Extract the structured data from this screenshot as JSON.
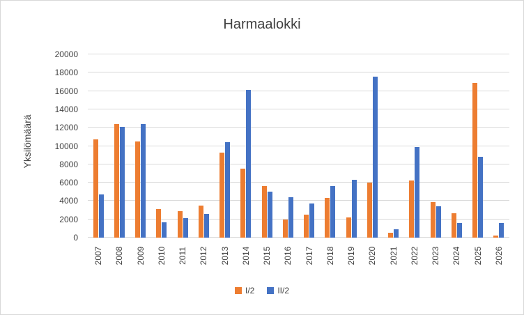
{
  "chart_data": {
    "type": "bar",
    "title": "Harmaalokki",
    "xlabel": "",
    "ylabel": "Yksilömäärä",
    "ylim": [
      0,
      20000
    ],
    "ytick_step": 2000,
    "grid": true,
    "legend_position": "bottom",
    "categories": [
      "2007",
      "2008",
      "2009",
      "2010",
      "2011",
      "2012",
      "2013",
      "2014",
      "2015",
      "2016",
      "2017",
      "2018",
      "2019",
      "2020",
      "2021",
      "2022",
      "2023",
      "2024",
      "2025",
      "2026"
    ],
    "series": [
      {
        "name": "I/2",
        "color": "#ED7D31",
        "values": [
          10700,
          12400,
          10500,
          3100,
          2900,
          3500,
          9300,
          7500,
          5600,
          2000,
          2500,
          4300,
          2200,
          6000,
          550,
          6200,
          3900,
          2700,
          16900,
          250
        ]
      },
      {
        "name": "II/2",
        "color": "#4472C4",
        "values": [
          4700,
          12100,
          12400,
          1700,
          2100,
          2600,
          10400,
          16100,
          5000,
          4400,
          3700,
          5600,
          6300,
          17600,
          900,
          9900,
          3400,
          1600,
          8800,
          1600
        ]
      }
    ],
    "colors": {
      "background": "#FFFFFF",
      "border": "#D8D8D8",
      "gridline": "#D9D9D9",
      "text": "#404040"
    }
  }
}
